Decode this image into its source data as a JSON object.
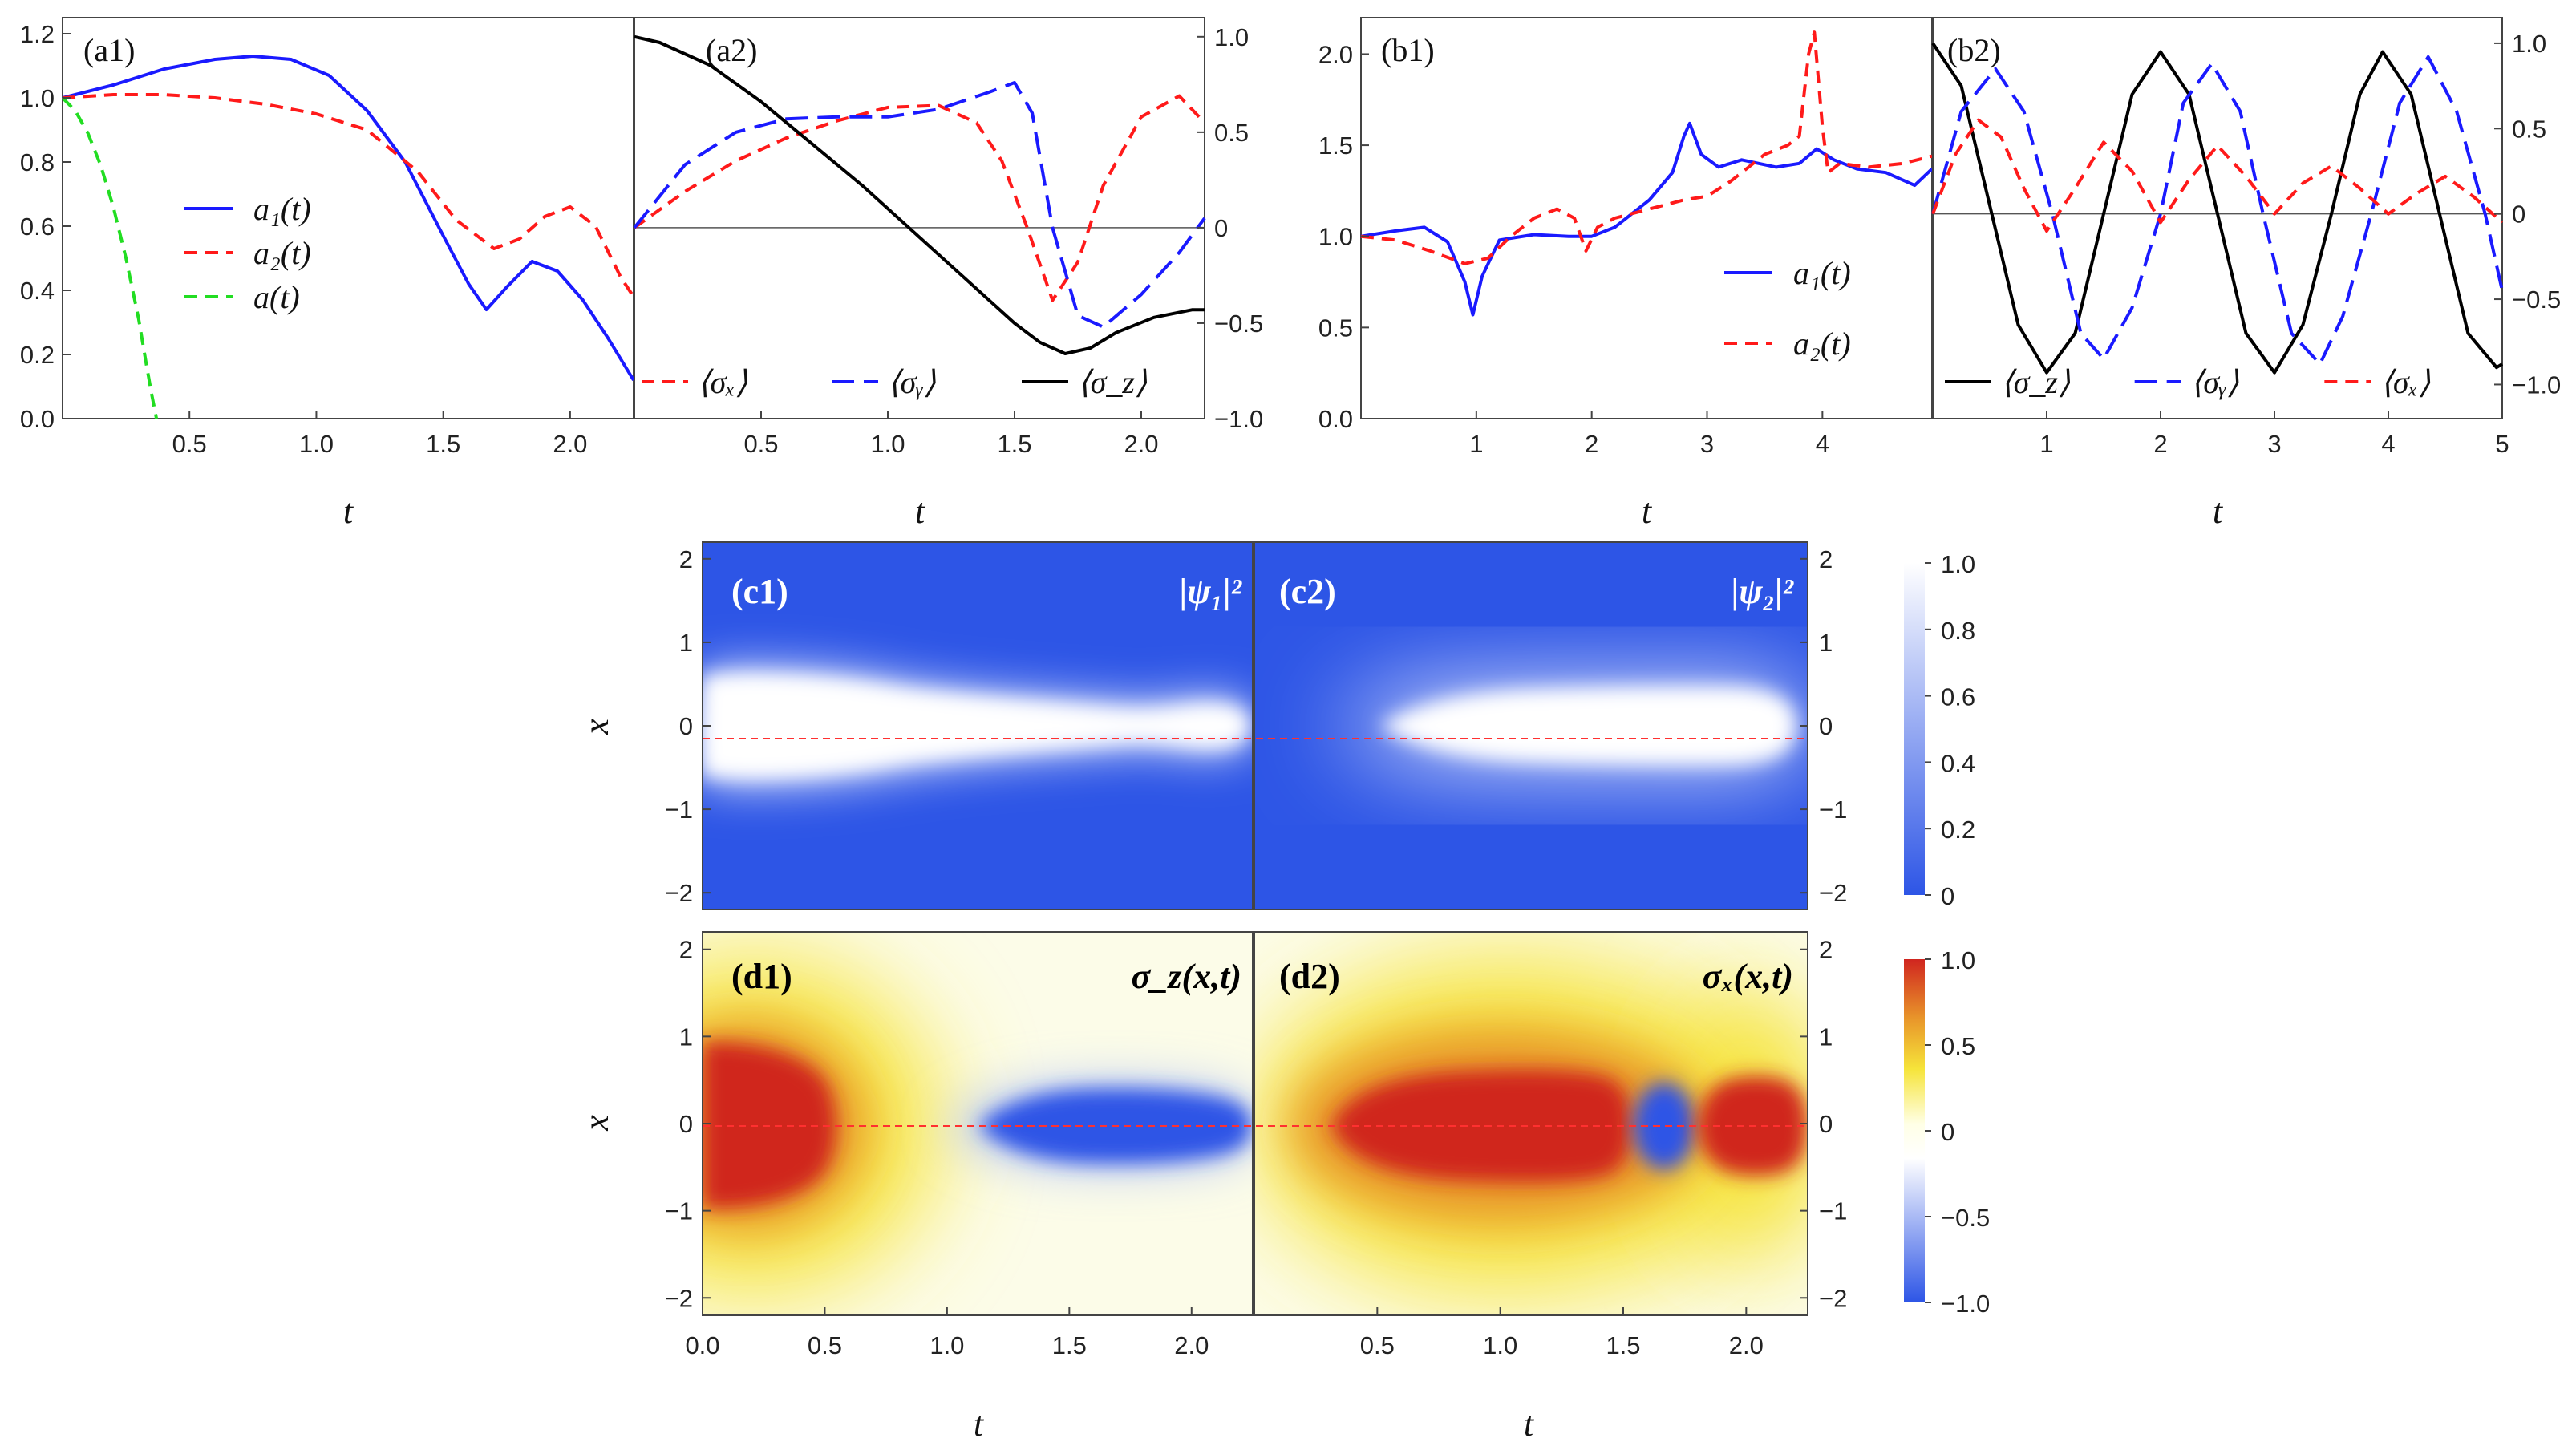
{
  "chart_data": [
    {
      "id": "a1",
      "panel_label": "(a1)",
      "type": "line",
      "xlabel": "t",
      "ylabel": "",
      "xlim": [
        0,
        2.25
      ],
      "ylim": [
        0,
        1.25
      ],
      "xticks": [
        0.5,
        1.0,
        1.5,
        2.0
      ],
      "xtick_labels": [
        "0.5",
        "1.0",
        "1.5",
        "2.0"
      ],
      "yticks": [
        0,
        0.2,
        0.4,
        0.6,
        0.8,
        1.0,
        1.2
      ],
      "ytick_labels": [
        "0.0",
        "0.2",
        "0.4",
        "0.6",
        "0.8",
        "1.0",
        "1.2"
      ],
      "legend": [
        {
          "label": "a₁(t)",
          "color": "#1a1aff",
          "dash": "solid"
        },
        {
          "label": "a₂(t)",
          "color": "#ff1a1a",
          "dash": "dashed"
        },
        {
          "label": "a(t)",
          "color": "#22dd22",
          "dash": "dashed"
        }
      ],
      "series": [
        {
          "name": "a₁(t)",
          "color": "#1a1aff",
          "dash": "solid",
          "x": [
            0,
            0.2,
            0.4,
            0.6,
            0.75,
            0.9,
            1.05,
            1.2,
            1.35,
            1.5,
            1.6,
            1.67,
            1.75,
            1.85,
            1.95,
            2.05,
            2.15,
            2.25
          ],
          "y": [
            1.0,
            1.04,
            1.09,
            1.12,
            1.13,
            1.12,
            1.07,
            0.96,
            0.8,
            0.57,
            0.42,
            0.34,
            0.41,
            0.49,
            0.46,
            0.37,
            0.25,
            0.12
          ]
        },
        {
          "name": "a₂(t)",
          "color": "#ff1a1a",
          "dash": "dashed",
          "x": [
            0,
            0.2,
            0.4,
            0.6,
            0.8,
            1.0,
            1.2,
            1.4,
            1.55,
            1.7,
            1.8,
            1.9,
            2.0,
            2.1,
            2.2,
            2.25
          ],
          "y": [
            1.0,
            1.01,
            1.01,
            1.0,
            0.98,
            0.95,
            0.9,
            0.77,
            0.62,
            0.53,
            0.56,
            0.63,
            0.66,
            0.6,
            0.44,
            0.38
          ]
        },
        {
          "name": "a(t)",
          "color": "#22dd22",
          "dash": "dashed",
          "x": [
            0,
            0.05,
            0.1,
            0.15,
            0.2,
            0.25,
            0.3,
            0.33,
            0.35,
            0.37
          ],
          "y": [
            1.0,
            0.96,
            0.89,
            0.79,
            0.66,
            0.5,
            0.31,
            0.17,
            0.08,
            0.0
          ]
        }
      ]
    },
    {
      "id": "a2",
      "panel_label": "(a2)",
      "type": "line",
      "xlabel": "t",
      "ylabel": "",
      "xlim": [
        0,
        2.25
      ],
      "ylim": [
        -1.0,
        1.1
      ],
      "xticks": [
        0.5,
        1.0,
        1.5,
        2.0
      ],
      "xtick_labels": [
        "0.5",
        "1.0",
        "1.5",
        "2.0"
      ],
      "yticks": [
        -1.0,
        -0.5,
        0,
        0.5,
        1.0
      ],
      "ytick_labels": [
        "−1.0",
        "−0.5",
        "0",
        "0.5",
        "1.0"
      ],
      "legend": [
        {
          "label": "⟨σₓ⟩",
          "color": "#ff1a1a",
          "dash": "dashed"
        },
        {
          "label": "⟨σᵧ⟩",
          "color": "#1a1aff",
          "dash": "longdash"
        },
        {
          "label": "⟨σ_z⟩",
          "color": "#000000",
          "dash": "solid"
        }
      ],
      "series": [
        {
          "name": "⟨σₓ⟩",
          "color": "#ff1a1a",
          "dash": "dashed",
          "x": [
            0,
            0.2,
            0.4,
            0.6,
            0.8,
            1.0,
            1.2,
            1.35,
            1.45,
            1.55,
            1.65,
            1.75,
            1.85,
            2.0,
            2.15,
            2.25
          ],
          "y": [
            0.0,
            0.19,
            0.35,
            0.47,
            0.56,
            0.63,
            0.64,
            0.55,
            0.35,
            0.0,
            -0.38,
            -0.18,
            0.22,
            0.58,
            0.69,
            0.55
          ]
        },
        {
          "name": "⟨σᵧ⟩",
          "color": "#1a1aff",
          "dash": "longdash",
          "x": [
            0,
            0.2,
            0.4,
            0.6,
            0.8,
            1.0,
            1.2,
            1.4,
            1.5,
            1.57,
            1.65,
            1.75,
            1.85,
            2.0,
            2.15,
            2.25
          ],
          "y": [
            0.0,
            0.33,
            0.5,
            0.57,
            0.58,
            0.58,
            0.62,
            0.71,
            0.76,
            0.6,
            0.0,
            -0.46,
            -0.52,
            -0.35,
            -0.13,
            0.05
          ]
        },
        {
          "name": "⟨σ_z⟩",
          "color": "#000000",
          "dash": "solid",
          "x": [
            0,
            0.1,
            0.3,
            0.5,
            0.7,
            0.9,
            1.1,
            1.3,
            1.5,
            1.6,
            1.7,
            1.8,
            1.9,
            2.05,
            2.2,
            2.25
          ],
          "y": [
            1.0,
            0.97,
            0.85,
            0.66,
            0.44,
            0.22,
            -0.02,
            -0.26,
            -0.5,
            -0.6,
            -0.66,
            -0.63,
            -0.55,
            -0.47,
            -0.43,
            -0.43
          ]
        }
      ]
    },
    {
      "id": "b1",
      "panel_label": "(b1)",
      "type": "line",
      "xlabel": "t",
      "ylabel": "",
      "xlim": [
        0,
        4.95
      ],
      "ylim": [
        0,
        2.2
      ],
      "xticks": [
        1,
        2,
        3,
        4
      ],
      "xtick_labels": [
        "1",
        "2",
        "3",
        "4"
      ],
      "yticks": [
        0,
        0.5,
        1.0,
        1.5,
        2.0
      ],
      "ytick_labels": [
        "0.0",
        "0.5",
        "1.0",
        "1.5",
        "2.0"
      ],
      "legend": [
        {
          "label": "a₁(t)",
          "color": "#1a1aff",
          "dash": "solid"
        },
        {
          "label": "a₂(t)",
          "color": "#ff1a1a",
          "dash": "dashed"
        }
      ],
      "series": [
        {
          "name": "a₁(t)",
          "color": "#1a1aff",
          "dash": "solid",
          "x": [
            0,
            0.3,
            0.55,
            0.75,
            0.9,
            0.97,
            1.05,
            1.2,
            1.5,
            1.8,
            2.0,
            2.2,
            2.5,
            2.7,
            2.8,
            2.85,
            2.95,
            3.1,
            3.3,
            3.6,
            3.8,
            3.95,
            4.1,
            4.3,
            4.55,
            4.8,
            4.95
          ],
          "y": [
            1.0,
            1.03,
            1.05,
            0.97,
            0.75,
            0.57,
            0.78,
            0.98,
            1.01,
            1.0,
            1.0,
            1.05,
            1.2,
            1.35,
            1.55,
            1.62,
            1.45,
            1.38,
            1.42,
            1.38,
            1.4,
            1.48,
            1.42,
            1.37,
            1.35,
            1.28,
            1.37
          ]
        },
        {
          "name": "a₂(t)",
          "color": "#ff1a1a",
          "dash": "dashed",
          "x": [
            0,
            0.3,
            0.6,
            0.9,
            1.1,
            1.3,
            1.5,
            1.7,
            1.85,
            1.95,
            2.05,
            2.2,
            2.5,
            2.8,
            3.0,
            3.2,
            3.5,
            3.7,
            3.8,
            3.88,
            3.93,
            4.0,
            4.05,
            4.15,
            4.4,
            4.7,
            4.95
          ],
          "y": [
            1.0,
            0.98,
            0.92,
            0.85,
            0.88,
            1.0,
            1.1,
            1.15,
            1.1,
            0.92,
            1.05,
            1.1,
            1.15,
            1.2,
            1.22,
            1.3,
            1.45,
            1.5,
            1.55,
            2.0,
            2.12,
            1.6,
            1.35,
            1.4,
            1.38,
            1.4,
            1.44
          ]
        }
      ]
    },
    {
      "id": "b2",
      "panel_label": "(b2)",
      "type": "line",
      "xlabel": "t",
      "ylabel": "",
      "xlim": [
        0,
        5
      ],
      "ylim": [
        -1.2,
        1.15
      ],
      "xticks": [
        1,
        2,
        3,
        4,
        5
      ],
      "xtick_labels": [
        "1",
        "2",
        "3",
        "4",
        "5"
      ],
      "yticks": [
        -1.0,
        -0.5,
        0,
        0.5,
        1.0
      ],
      "ytick_labels": [
        "−1.0",
        "−0.5",
        "0",
        "0.5",
        "1.0"
      ],
      "legend": [
        {
          "label": "⟨σ_z⟩",
          "color": "#000000",
          "dash": "solid"
        },
        {
          "label": "⟨σᵧ⟩",
          "color": "#1a1aff",
          "dash": "longdash"
        },
        {
          "label": "⟨σₓ⟩",
          "color": "#ff1a1a",
          "dash": "dashed"
        }
      ],
      "series": [
        {
          "name": "⟨σ_z⟩",
          "color": "#000000",
          "dash": "solid",
          "x": [
            0,
            0.25,
            0.5,
            0.75,
            1.0,
            1.25,
            1.5,
            1.75,
            2.0,
            2.25,
            2.5,
            2.75,
            3.0,
            3.25,
            3.5,
            3.75,
            3.95,
            4.2,
            4.45,
            4.7,
            4.95,
            5.0
          ],
          "y": [
            1.0,
            0.75,
            0.05,
            -0.65,
            -0.93,
            -0.7,
            0.0,
            0.7,
            0.95,
            0.7,
            0.0,
            -0.7,
            -0.93,
            -0.65,
            0.0,
            0.7,
            0.95,
            0.7,
            0.0,
            -0.7,
            -0.9,
            -0.88
          ]
        },
        {
          "name": "⟨σᵧ⟩",
          "color": "#1a1aff",
          "dash": "longdash",
          "x": [
            0,
            0.25,
            0.55,
            0.8,
            1.05,
            1.3,
            1.5,
            1.75,
            2.0,
            2.2,
            2.45,
            2.7,
            2.9,
            3.15,
            3.4,
            3.6,
            3.85,
            4.1,
            4.35,
            4.6,
            4.85,
            5.0
          ],
          "y": [
            0.0,
            0.6,
            0.85,
            0.6,
            0.0,
            -0.7,
            -0.85,
            -0.55,
            0.0,
            0.65,
            0.88,
            0.6,
            0.0,
            -0.7,
            -0.88,
            -0.6,
            0.0,
            0.65,
            0.92,
            0.6,
            0.0,
            -0.45
          ]
        },
        {
          "name": "⟨σₓ⟩",
          "color": "#ff1a1a",
          "dash": "dashed",
          "x": [
            0,
            0.2,
            0.4,
            0.6,
            0.8,
            1.0,
            1.25,
            1.5,
            1.75,
            2.0,
            2.25,
            2.5,
            2.75,
            3.0,
            3.25,
            3.5,
            3.75,
            4.0,
            4.25,
            4.5,
            4.75,
            5.0
          ],
          "y": [
            0.0,
            0.35,
            0.55,
            0.45,
            0.15,
            -0.1,
            0.15,
            0.42,
            0.25,
            -0.05,
            0.2,
            0.4,
            0.22,
            0.0,
            0.18,
            0.28,
            0.15,
            0.0,
            0.12,
            0.22,
            0.1,
            -0.05
          ]
        }
      ]
    },
    {
      "id": "c1",
      "panel_label": "(c1)",
      "type": "heatmap",
      "annotation": "|ψ₁|²",
      "xlabel": "",
      "ylabel": "x",
      "xlim": [
        0,
        2.25
      ],
      "ylim": [
        -2.2,
        2.2
      ],
      "yticks": [
        -2,
        -1,
        0,
        1,
        2
      ],
      "ytick_labels": [
        "−2",
        "−1",
        "0",
        "1",
        "2"
      ],
      "colormap": "blue-white",
      "clim": [
        0,
        1.0
      ],
      "description": "Bright band around x=0 with half-width about 0.8 near t=0, narrowing to about 0.3 near t=1.7 and ending in a rounded bulge at t=2.25."
    },
    {
      "id": "c2",
      "panel_label": "(c2)",
      "type": "heatmap",
      "annotation": "|ψ₂|²",
      "xlabel": "",
      "ylabel": "",
      "xlim": [
        0,
        2.25
      ],
      "ylim": [
        -2.2,
        2.2
      ],
      "yticks": [
        -2,
        -1,
        0,
        1,
        2
      ],
      "ytick_labels": [
        "−2",
        "−1",
        "0",
        "1",
        "2"
      ],
      "colormap": "blue-white",
      "clim": [
        0,
        1.0
      ],
      "description": "Near zero at t=0, grows into a bright band around x=0 reaching half-width about 0.6 for t between 1.0 and 2.2."
    },
    {
      "id": "d1",
      "panel_label": "(d1)",
      "type": "heatmap",
      "annotation": "σ_z(x,t)",
      "xlabel": "t",
      "ylabel": "x",
      "xlim": [
        0,
        2.25
      ],
      "ylim": [
        -2.2,
        2.2
      ],
      "xticks": [
        0.0,
        0.5,
        1.0,
        1.5,
        2.0
      ],
      "xtick_labels": [
        "0.0",
        "0.5",
        "1.0",
        "1.5",
        "2.0"
      ],
      "yticks": [
        -2,
        -1,
        0,
        1,
        2
      ],
      "ytick_labels": [
        "−2",
        "−1",
        "0",
        "1",
        "2"
      ],
      "colormap": "blue-white-yellow-red",
      "clim": [
        -1.0,
        1.0
      ],
      "description": "Red region (+1) at small t near x=0, fading through yellow to white near t=1, then blue region (-1) for t between 1.2 and 2.25."
    },
    {
      "id": "d2",
      "panel_label": "(d2)",
      "type": "heatmap",
      "annotation": "σₓ(x,t)",
      "xlabel": "t",
      "ylabel": "",
      "xlim": [
        0,
        2.25
      ],
      "ylim": [
        -2.2,
        2.2
      ],
      "xticks": [
        0.5,
        1.0,
        1.5,
        2.0
      ],
      "xtick_labels": [
        "0.5",
        "1.0",
        "1.5",
        "2.0"
      ],
      "yticks": [
        -2,
        -1,
        0,
        1,
        2
      ],
      "ytick_labels": [
        "−2",
        "−1",
        "0",
        "1",
        "2"
      ],
      "colormap": "blue-white-yellow-red",
      "clim": [
        -1.0,
        1.0
      ],
      "description": "Large red region for t between 0.3 and 1.5, small blue island near t=1.65, second red region for t between 1.8 and 2.25."
    }
  ],
  "colorbars": [
    {
      "id": "cb-blue",
      "colors": [
        "#2d55e6",
        "#ffffff"
      ],
      "ticks": [
        0,
        0.2,
        0.4,
        0.6,
        0.8,
        1.0
      ],
      "tick_labels": [
        "0",
        "0.2",
        "0.4",
        "0.6",
        "0.8",
        "1.0"
      ]
    },
    {
      "id": "cb-red",
      "colors": [
        "#2d55e6",
        "#ffffff",
        "#ffffe8",
        "#f6e43a",
        "#e8942a",
        "#d0251f"
      ],
      "ticks": [
        -1.0,
        -0.5,
        0,
        0.5,
        1.0
      ],
      "tick_labels": [
        "−1.0",
        "−0.5",
        "0",
        "0.5",
        "1.0"
      ]
    }
  ]
}
